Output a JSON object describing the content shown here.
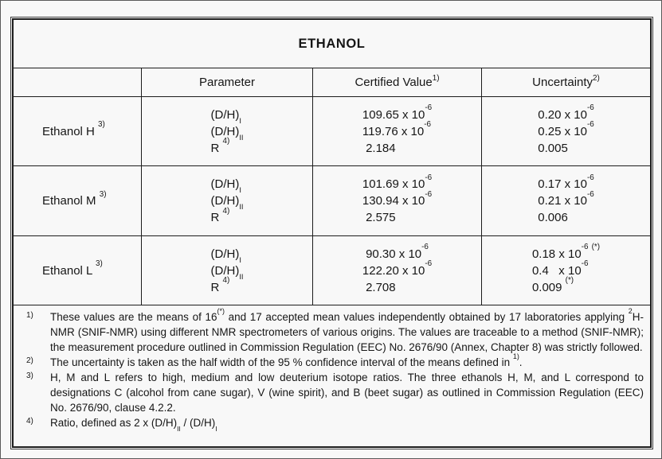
{
  "page": {
    "title": "ETHANOL"
  },
  "table": {
    "headers": {
      "corner": "",
      "parameter": "Parameter",
      "certified_value": "Certified Value ^{1)}",
      "uncertainty": "Uncertainty ^{2)}"
    },
    "rows": [
      {
        "label": "Ethanol H ^{3)}",
        "parameters": [
          "(D/H)~{I}",
          "(D/H)~{II}",
          "R ^{4)}"
        ],
        "certified_values": [
          "109.65 x 10^{-6}",
          "119.76 x 10^{-6}",
          " 2.184"
        ],
        "uncertainties": [
          "0.20 x 10^{-6}",
          "0.25 x 10^{-6}",
          "0.005"
        ]
      },
      {
        "label": "Ethanol M ^{3)}",
        "parameters": [
          "(D/H)~{I}",
          "(D/H)~{II}",
          "R ^{4)}"
        ],
        "certified_values": [
          "101.69 x 10^{-6}",
          "130.94 x 10^{-6}",
          " 2.575"
        ],
        "uncertainties": [
          "0.17 x 10^{-6}",
          "0.21 x 10^{-6}",
          "0.006"
        ]
      },
      {
        "label": "Ethanol L ^{3)}",
        "parameters": [
          "(D/H)~{I}",
          "(D/H)~{II}",
          "R ^{4)}"
        ],
        "certified_values": [
          " 90.30 x 10^{-6}",
          "122.20 x 10^{-6}",
          " 2.708"
        ],
        "uncertainties": [
          "0.18 x 10^{-6} ^{(*)}",
          "0.4   x 10^{-6}",
          "0.009 ^{(*)}"
        ]
      }
    ]
  },
  "footnotes": [
    {
      "marker": "1)",
      "text": "These values are the means of 16^{(*)} and 17 accepted mean values independently obtained by 17 laboratories applying ^{2}H-NMR (SNIF-NMR) using different NMR spectrometers of various origins. The values are traceable to a method (SNIF-NMR); the measurement procedure outlined in Commission Regulation (EEC) No. 2676/90 (Annex, Chapter 8) was strictly followed."
    },
    {
      "marker": "2)",
      "text": "The uncertainty is taken as the half width of the 95 % confidence interval of the means defined in ^{1)}."
    },
    {
      "marker": "3)",
      "text": "H, M and L refers to high, medium and low deuterium isotope ratios. The three ethanols H, M, and L correspond to designations C (alcohol from cane sugar), V (wine spirit), and B (beet sugar) as outlined in Commission Regulation (EEC) No. 2676/90, clause 4.2.2."
    },
    {
      "marker": "4)",
      "text": "Ratio, defined as 2 x (D/H)~{II} / (D/H)~{I}"
    }
  ]
}
